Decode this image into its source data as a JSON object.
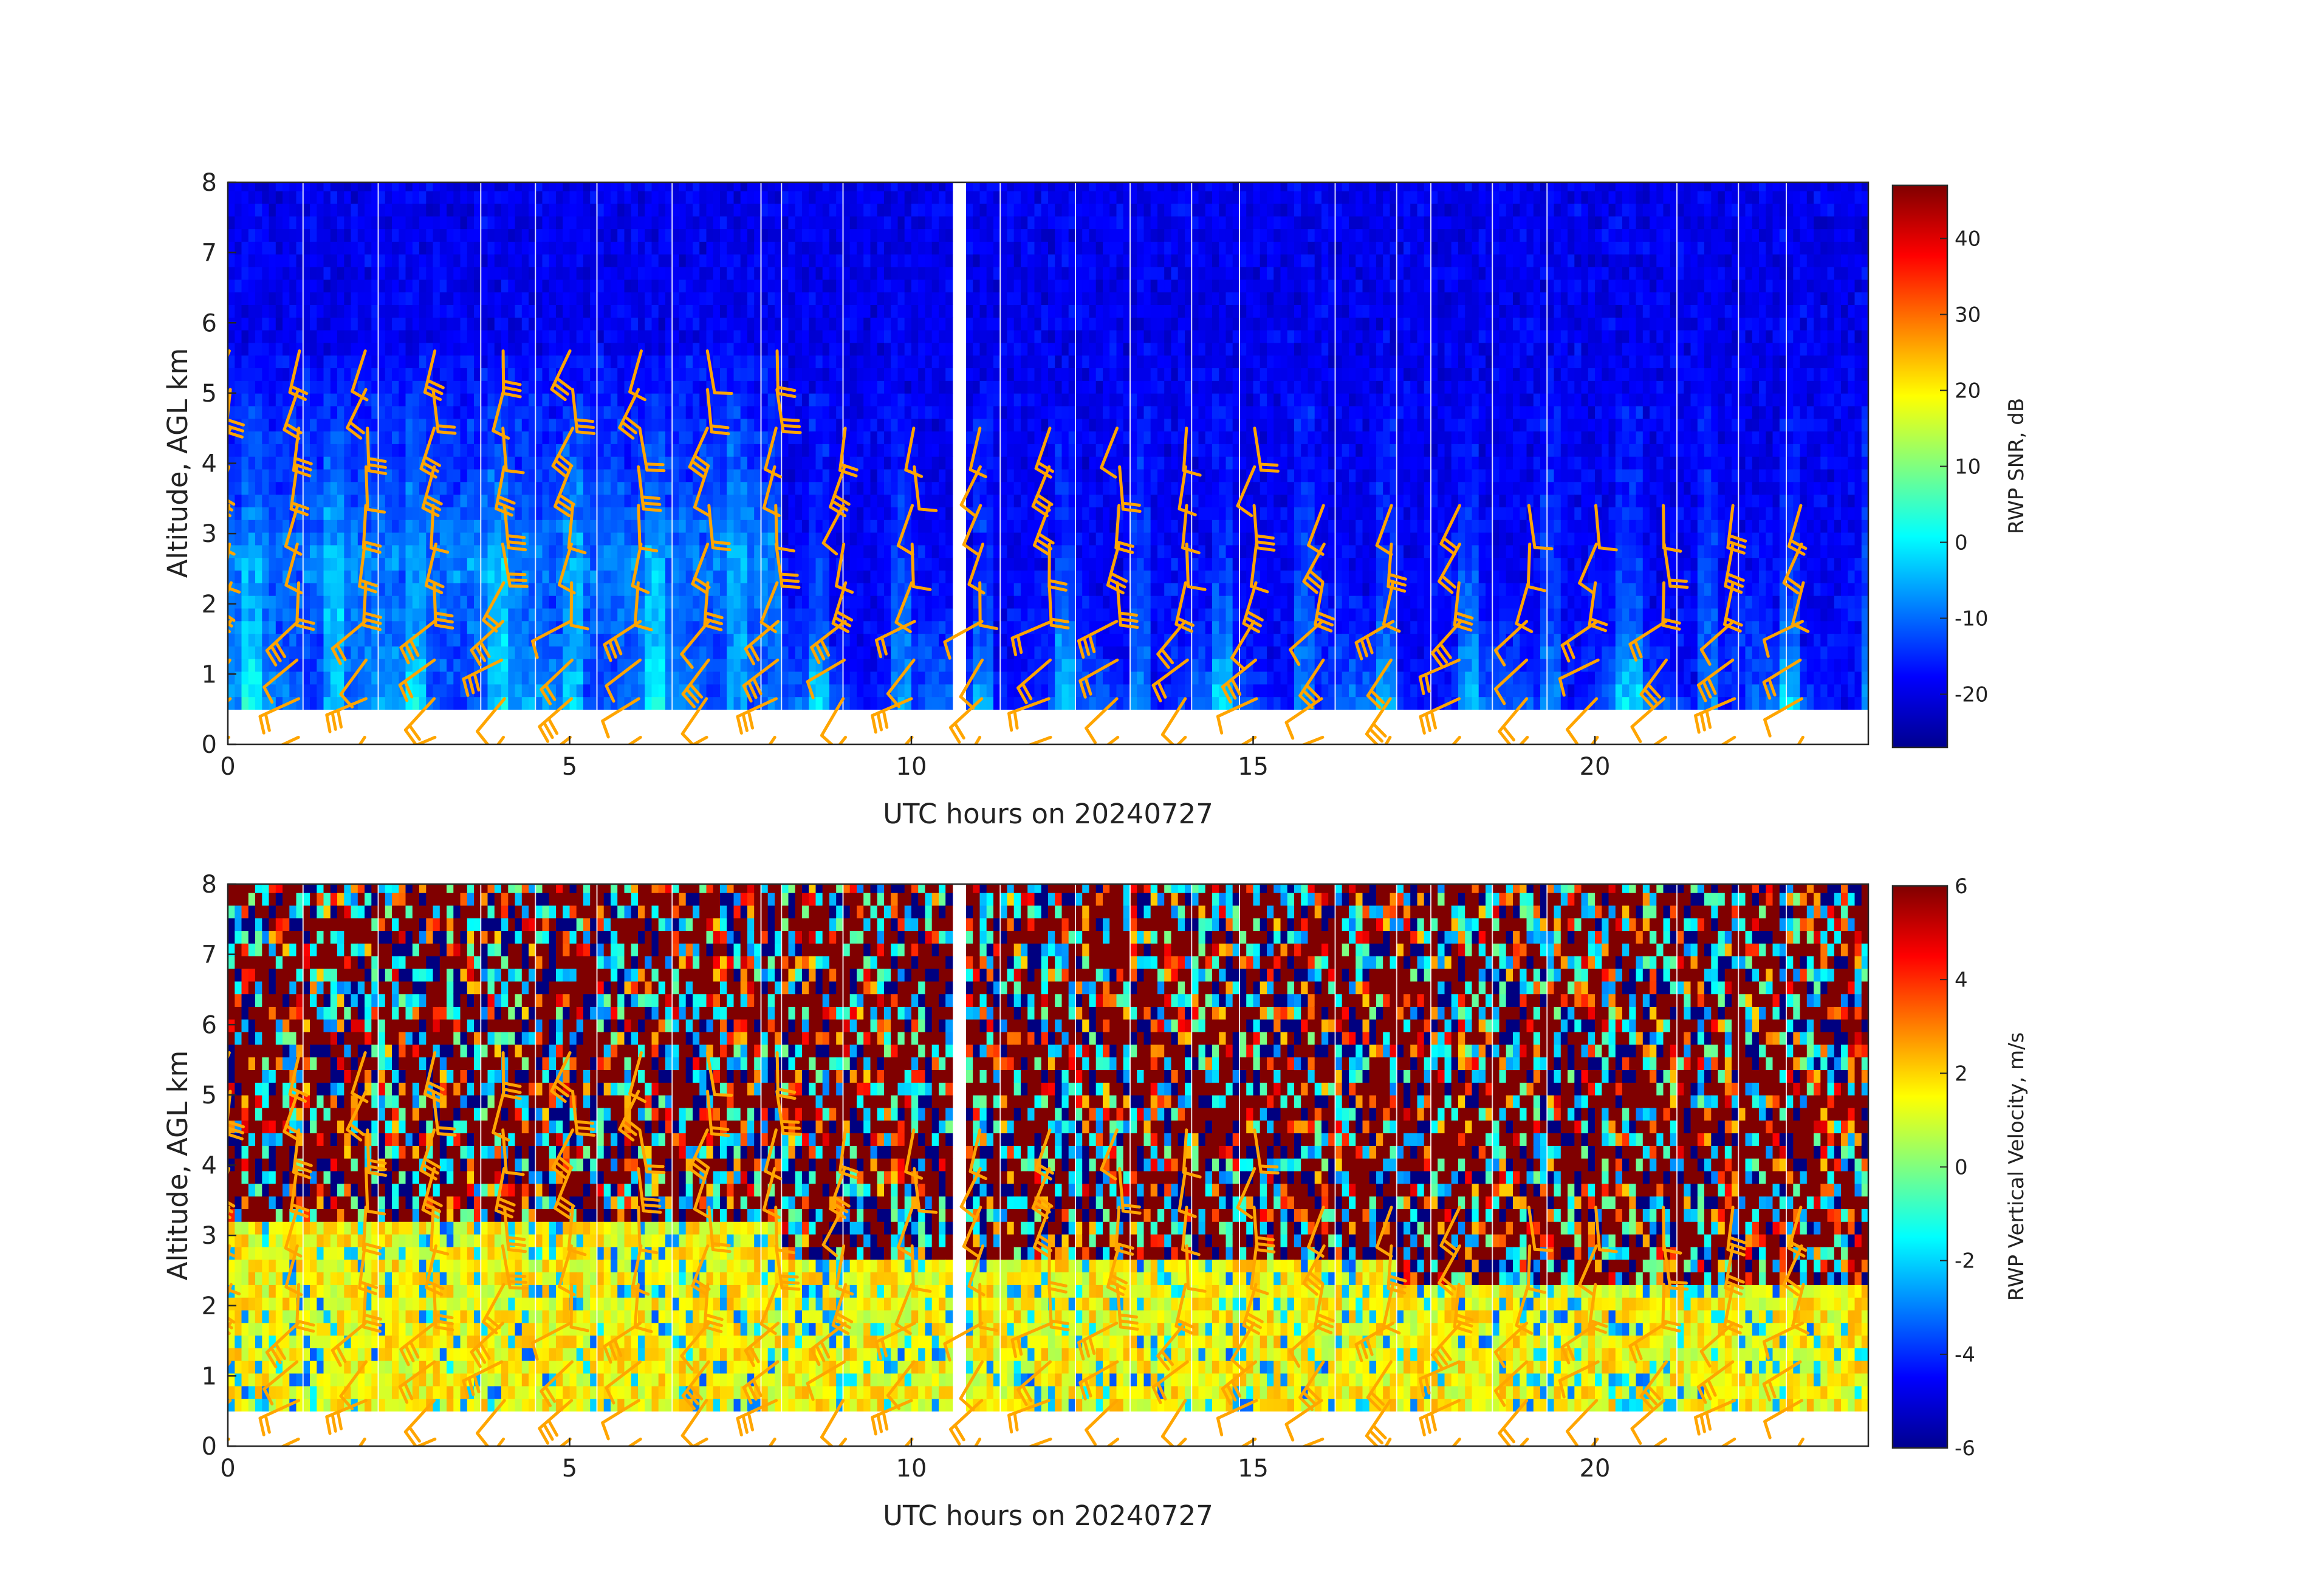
{
  "chart_data": [
    {
      "type": "heatmap",
      "variable": "snr",
      "xlabel": "UTC hours on 20240727",
      "ylabel": "Altitude, AGL km",
      "xlim": [
        0,
        24
      ],
      "ylim": [
        0,
        8
      ],
      "x_ticks": [
        0,
        5,
        10,
        15,
        20
      ],
      "y_ticks": [
        0,
        1,
        2,
        3,
        4,
        5,
        6,
        7,
        8
      ],
      "colorbar": {
        "label": "RWP SNR, dB",
        "colormap": "jet",
        "range": [
          -27,
          47
        ],
        "ticks": [
          -20,
          -10,
          0,
          10,
          20,
          30,
          40
        ]
      },
      "data_gaps_hours": [
        [
          10.5,
          10.75
        ]
      ],
      "lowest_gate_km": 0.5,
      "max_gate_km": 7.9,
      "wind_barbs": {
        "color": "#FFA500",
        "shown": true
      }
    },
    {
      "type": "heatmap",
      "variable": "vertical_velocity",
      "xlabel": "UTC hours on 20240727",
      "ylabel": "Altitude, AGL km",
      "xlim": [
        0,
        24
      ],
      "ylim": [
        0,
        8
      ],
      "x_ticks": [
        0,
        5,
        10,
        15,
        20
      ],
      "y_ticks": [
        0,
        1,
        2,
        3,
        4,
        5,
        6,
        7,
        8
      ],
      "colorbar": {
        "label": "RWP Vertical Velocity, m/s",
        "colormap": "jet",
        "range": [
          -6,
          6
        ],
        "ticks": [
          -6,
          -4,
          -2,
          0,
          2,
          4,
          6
        ]
      },
      "data_gaps_hours": [
        [
          10.5,
          10.75
        ]
      ],
      "lowest_gate_km": 0.5,
      "max_gate_km": 7.9,
      "wind_barbs": {
        "color": "#FFA500",
        "shown": true
      }
    }
  ]
}
